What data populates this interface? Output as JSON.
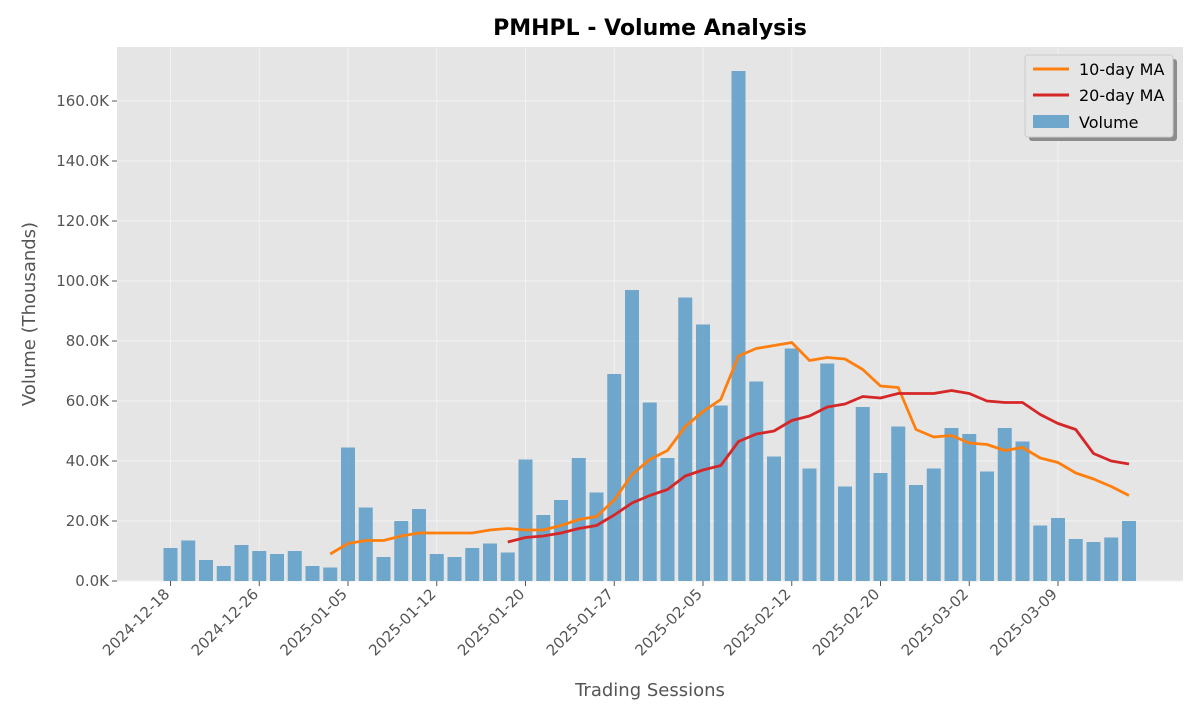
{
  "chart_data": {
    "type": "bar",
    "title": "PMHPL - Volume Analysis",
    "xlabel": "Trading Sessions",
    "ylabel": "Volume (Thousands)",
    "ylim": [
      0,
      178000
    ],
    "yticks": [
      0,
      20000,
      40000,
      60000,
      80000,
      100000,
      120000,
      140000,
      160000
    ],
    "ytick_labels": [
      "0.0K",
      "20.0K",
      "40.0K",
      "60.0K",
      "80.0K",
      "100.0K",
      "120.0K",
      "140.0K",
      "160.0K"
    ],
    "xtick_labels": [
      "2024-12-18",
      "2024-12-26",
      "2025-01-05",
      "2025-01-12",
      "2025-01-20",
      "2025-01-27",
      "2025-02-05",
      "2025-02-12",
      "2025-02-20",
      "2025-03-02",
      "2025-03-09"
    ],
    "xtick_positions": [
      0,
      5,
      10,
      15,
      20,
      25,
      30,
      35,
      40,
      45,
      50
    ],
    "grid": true,
    "legend_position": "top-right",
    "colors": {
      "volume": "#5b9bc8",
      "ma10": "#ff7f0e",
      "ma20": "#d62728",
      "background": "#e5e5e5",
      "grid": "#f2f2f2"
    },
    "series": [
      {
        "name": "Volume",
        "type": "bar",
        "values": [
          11000,
          13500,
          7000,
          5000,
          12000,
          10000,
          9000,
          10000,
          5000,
          4500,
          44500,
          24500,
          8000,
          20000,
          24000,
          9000,
          8000,
          11000,
          12500,
          9500,
          40500,
          22000,
          27000,
          41000,
          29500,
          69000,
          97000,
          59500,
          41000,
          94500,
          85500,
          58500,
          170000,
          66500,
          41500,
          77500,
          37500,
          72500,
          31500,
          58000,
          36000,
          51500,
          32000,
          37500,
          51000,
          49000,
          36500,
          51000,
          46500,
          18500,
          21000,
          14000,
          13000,
          14500,
          20000
        ]
      },
      {
        "name": "10-day MA",
        "type": "line",
        "start_index": 9,
        "values": [
          9000,
          12500,
          13500,
          13500,
          15000,
          16000,
          16000,
          16000,
          16000,
          17000,
          17500,
          17000,
          17000,
          18500,
          20500,
          21500,
          27000,
          35500,
          40500,
          43500,
          51500,
          56500,
          60500,
          75000,
          77500,
          78500,
          79500,
          73500,
          74500,
          74000,
          70500,
          65000,
          64500,
          50500,
          48000,
          48500,
          46000,
          45500,
          43500,
          44500,
          41000,
          39500,
          36000,
          34000,
          31500,
          28500
        ]
      },
      {
        "name": "20-day MA",
        "type": "line",
        "start_index": 19,
        "values": [
          13000,
          14500,
          15000,
          16000,
          17500,
          18500,
          22000,
          26000,
          28500,
          30500,
          35000,
          37000,
          38500,
          46500,
          49000,
          50000,
          53500,
          55000,
          58000,
          59000,
          61500,
          61000,
          62500,
          62500,
          62500,
          63500,
          62500,
          60000,
          59500,
          59500,
          55500,
          52500,
          50500,
          42500,
          40000,
          39000
        ]
      }
    ]
  }
}
